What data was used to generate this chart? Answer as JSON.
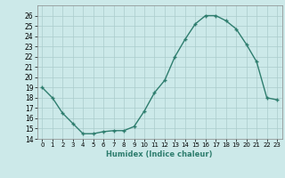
{
  "x": [
    0,
    1,
    2,
    3,
    4,
    5,
    6,
    7,
    8,
    9,
    10,
    11,
    12,
    13,
    14,
    15,
    16,
    17,
    18,
    19,
    20,
    21,
    22,
    23
  ],
  "y": [
    19,
    18,
    16.5,
    15.5,
    14.5,
    14.5,
    14.7,
    14.8,
    14.8,
    15.2,
    16.7,
    18.5,
    19.7,
    22.0,
    23.7,
    25.2,
    26.0,
    26.0,
    25.5,
    24.7,
    23.2,
    21.5,
    18.0,
    17.8
  ],
  "xlabel": "Humidex (Indice chaleur)",
  "ylim": [
    14,
    27
  ],
  "xlim": [
    -0.5,
    23.5
  ],
  "yticks": [
    14,
    15,
    16,
    17,
    18,
    19,
    20,
    21,
    22,
    23,
    24,
    25,
    26
  ],
  "xtick_labels": [
    "0",
    "1",
    "2",
    "3",
    "4",
    "5",
    "6",
    "7",
    "8",
    "9",
    "10",
    "11",
    "12",
    "13",
    "14",
    "15",
    "16",
    "17",
    "18",
    "19",
    "20",
    "21",
    "22",
    "23"
  ],
  "line_color": "#2e7d6e",
  "bg_color": "#cce9e9",
  "grid_color": "#aacccc"
}
